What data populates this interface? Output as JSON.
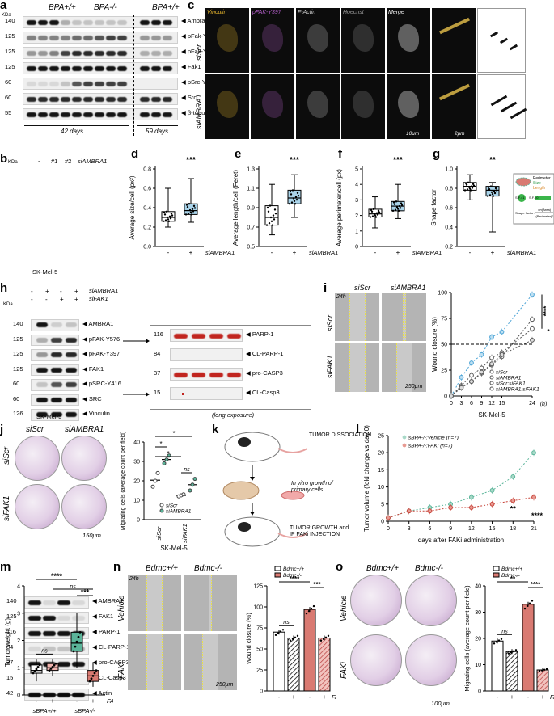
{
  "a": {
    "label": "a",
    "kda": "KDa",
    "groups": [
      "BPA+/+",
      "BPA-/-",
      "BPA+/+"
    ],
    "mw": [
      "140",
      "125",
      "125",
      "125",
      "60",
      "60",
      "55"
    ],
    "proteins": [
      "Ambra1",
      "pFak-Y576",
      "pFak-Y397",
      "Fak1",
      "pSrc-Y416",
      "Src",
      "β-tubulin"
    ],
    "times": [
      "42 days",
      "59 days"
    ]
  },
  "b": {
    "label": "b",
    "kda": "KDa",
    "lanes": [
      "-",
      "#1",
      "#2"
    ],
    "treat": "siAMBRA1",
    "mw": [
      "140",
      "125",
      "125",
      "125",
      "60",
      "60",
      "126"
    ],
    "proteins": [
      "AMBRA1",
      "pFAK-Y576",
      "pFAK-Y397",
      "FAK1",
      "pSRC-Y416",
      "SRC",
      "Vinculin"
    ],
    "cell": "SK-Mel-5"
  },
  "c": {
    "label": "c",
    "channels": [
      "Vinculin",
      "pFAK-Y397",
      "F-Actin",
      "Hoechst",
      "Merge"
    ],
    "rows": [
      "siScr",
      "siAMBRA1"
    ],
    "scale1": "10μm",
    "scale2": "2μm"
  },
  "d": {
    "label": "d",
    "ylabel": "Average size/cell (px²)",
    "sig": "***",
    "treat": "siAMBRA1",
    "ticks": [
      "0.0",
      "0.2",
      "0.4",
      "0.6",
      "0.8"
    ]
  },
  "e": {
    "label": "e",
    "ylabel": "Average length/cell (Feret)",
    "sig": "***",
    "treat": "siAMBRA1",
    "ticks": [
      "0.5",
      "0.7",
      "0.9",
      "1.1",
      "1.3"
    ]
  },
  "f": {
    "label": "f",
    "ylabel": "Average perimeter/cell (px)",
    "sig": "***",
    "treat": "siAMBRA1",
    "ticks": [
      "0",
      "1",
      "2",
      "3",
      "4",
      "5"
    ]
  },
  "g": {
    "label": "g",
    "ylabel": "Shape factor",
    "sig": "**",
    "treat": "siAMBRA1",
    "ticks": [
      "0.2",
      "0.4",
      "0.6",
      "0.8",
      "1.0"
    ],
    "legend": [
      "Perimeter",
      "Size",
      "Length"
    ],
    "sf1": "S.F.=1",
    "sf0": "S.F.=0",
    "formula_left": "Shape factor:",
    "formula_num": "4π(Area)",
    "formula_den": "(Perimeter)²"
  },
  "h": {
    "label": "h",
    "kda": "KDa",
    "treat1": "siAMBRA1",
    "treat2": "siFAK1",
    "row1": [
      "-",
      "+",
      "-",
      "+"
    ],
    "row2": [
      "-",
      "-",
      "+",
      "+"
    ],
    "mw": [
      "140",
      "125",
      "116",
      "84",
      "37",
      "15",
      "42"
    ],
    "proteins": [
      "AMBRA1",
      "FAK1",
      "PARP-1",
      "CL-PARP-1",
      "pro-CASP3",
      "CL-Casp3",
      "Actin"
    ],
    "inset_mw": [
      "116",
      "84",
      "37",
      "15"
    ],
    "inset_proteins": [
      "PARP-1",
      "CL-PARP-1",
      "pro-CASP3",
      "CL-Casp3"
    ],
    "inset_caption": "(long exposure)",
    "cell": "SK-Mel-5"
  },
  "i": {
    "label": "i",
    "cols": [
      "siScr",
      "siAMBRA1"
    ],
    "rows": [
      "siScr",
      "siFAK1"
    ],
    "time": "24h",
    "scale": "250μm",
    "ylabel": "Wound closure (%)",
    "xlabel": "(h)",
    "cell": "SK-Mel-5",
    "sig1": "****",
    "sig2": "*",
    "chart_data": {
      "type": "line",
      "x": [
        0,
        3,
        6,
        9,
        12,
        15,
        24
      ],
      "xticks": [
        "0",
        "3",
        "6",
        "9",
        "12",
        "15",
        "24"
      ],
      "yticks": [
        "0",
        "25",
        "50",
        "75",
        "100"
      ],
      "ylim": [
        0,
        100
      ],
      "series": [
        {
          "name": "siScr",
          "values": [
            0,
            10,
            20,
            27,
            37,
            42,
            65
          ]
        },
        {
          "name": "siAMBRA1",
          "values": [
            0,
            18,
            32,
            40,
            57,
            62,
            98
          ]
        },
        {
          "name": "siScr:siFAK1",
          "values": [
            0,
            9,
            14,
            22,
            30,
            38,
            74
          ]
        },
        {
          "name": "siAMBRA1:siFAK1",
          "values": [
            0,
            8,
            14,
            23,
            31,
            40,
            54
          ]
        }
      ]
    }
  },
  "j": {
    "label": "j",
    "cols": [
      "siScr",
      "siAMBRA1"
    ],
    "rows": [
      "siScr",
      "siFAK1"
    ],
    "scale": "150μm",
    "ylabel": "Migrating cells (average count per field)",
    "legend": [
      "siScr",
      "siAMBRA1"
    ],
    "xcats": [
      "siScr",
      "siFAK1"
    ],
    "cell": "SK-Mel-5",
    "sig": [
      "*",
      "*",
      "*",
      "ns"
    ],
    "yticks": [
      "0",
      "10",
      "20",
      "30",
      "40"
    ]
  },
  "k": {
    "label": "k",
    "steps": [
      "TUMOR DISSOCIATION",
      "In vitro growth of primary cells",
      "TUMOR GROWTH and IP FAKi INJECTION"
    ]
  },
  "l": {
    "label": "l",
    "ylabel": "Tumor volume (fold change vs day 0)",
    "xlabel": "days after FAKi administration",
    "sig": [
      "**",
      "****"
    ],
    "chart_data": {
      "type": "line",
      "x": [
        0,
        3,
        6,
        9,
        12,
        15,
        18,
        21
      ],
      "xticks": [
        "0",
        "3",
        "6",
        "9",
        "12",
        "15",
        "18",
        "21"
      ],
      "yticks": [
        "0",
        "5",
        "10",
        "15",
        "20",
        "25"
      ],
      "ylim": [
        0,
        25
      ],
      "series": [
        {
          "name": "sBPA-/-:Vehicle (n=7)",
          "values": [
            1,
            3,
            4,
            5,
            7,
            9,
            13,
            20
          ]
        },
        {
          "name": "sBPA-/-:FAKi (n=7)",
          "values": [
            1,
            3,
            3,
            4,
            4,
            5,
            6,
            7
          ]
        }
      ]
    }
  },
  "m": {
    "label": "m",
    "ylabel": "Tumor weight (g)",
    "treat": "FAKi",
    "groups": [
      "sBPA+/+",
      "sBPA-/-"
    ],
    "sig": [
      "****",
      "ns",
      "***",
      "ns"
    ],
    "yticks": [
      "0",
      "1",
      "2",
      "3",
      "4"
    ]
  },
  "n": {
    "label": "n",
    "cols": [
      "Bdmc+/+",
      "Bdmc-/-"
    ],
    "rows": [
      "Vehicle",
      "FAKi"
    ],
    "time": "24h",
    "scale": "250μm",
    "ylabel": "Wound closure (%)",
    "legend": [
      "Bdmc+/+",
      "Bdmc-/-"
    ],
    "treat": "FAKi",
    "sig": [
      "****",
      "***",
      "ns"
    ],
    "chart_data": {
      "type": "bar",
      "categories": [
        "Bdmc+/+ -",
        "Bdmc+/+ +",
        "Bdmc-/- -",
        "Bdmc-/- +"
      ],
      "values": [
        70,
        63,
        97,
        63
      ],
      "yticks": [
        "0",
        "25",
        "50",
        "75",
        "100",
        "125"
      ],
      "ylim": [
        0,
        125
      ]
    }
  },
  "o": {
    "label": "o",
    "cols": [
      "Bdmc+/+",
      "Bdmc-/-"
    ],
    "rows": [
      "Vehicle",
      "FAKi"
    ],
    "scale": "100μm",
    "ylabel": "Migrating cells (average count per field)",
    "legend": [
      "Bdmc+/+",
      "Bdmc-/-"
    ],
    "treat": "FAKi",
    "sig": [
      "**",
      "****",
      "ns"
    ],
    "chart_data": {
      "type": "bar",
      "categories": [
        "Bdmc+/+ -",
        "Bdmc+/+ +",
        "Bdmc-/- -",
        "Bdmc-/- +"
      ],
      "values": [
        19,
        15,
        33,
        8
      ],
      "yticks": [
        "0",
        "10",
        "20",
        "30",
        "40"
      ],
      "ylim": [
        0,
        40
      ]
    }
  },
  "colors": {
    "blue": "#aad4ea",
    "pink": "#d97a72",
    "green": "#5bb59a",
    "yellow": "#e8e04a",
    "purple": "#b25ec8"
  }
}
